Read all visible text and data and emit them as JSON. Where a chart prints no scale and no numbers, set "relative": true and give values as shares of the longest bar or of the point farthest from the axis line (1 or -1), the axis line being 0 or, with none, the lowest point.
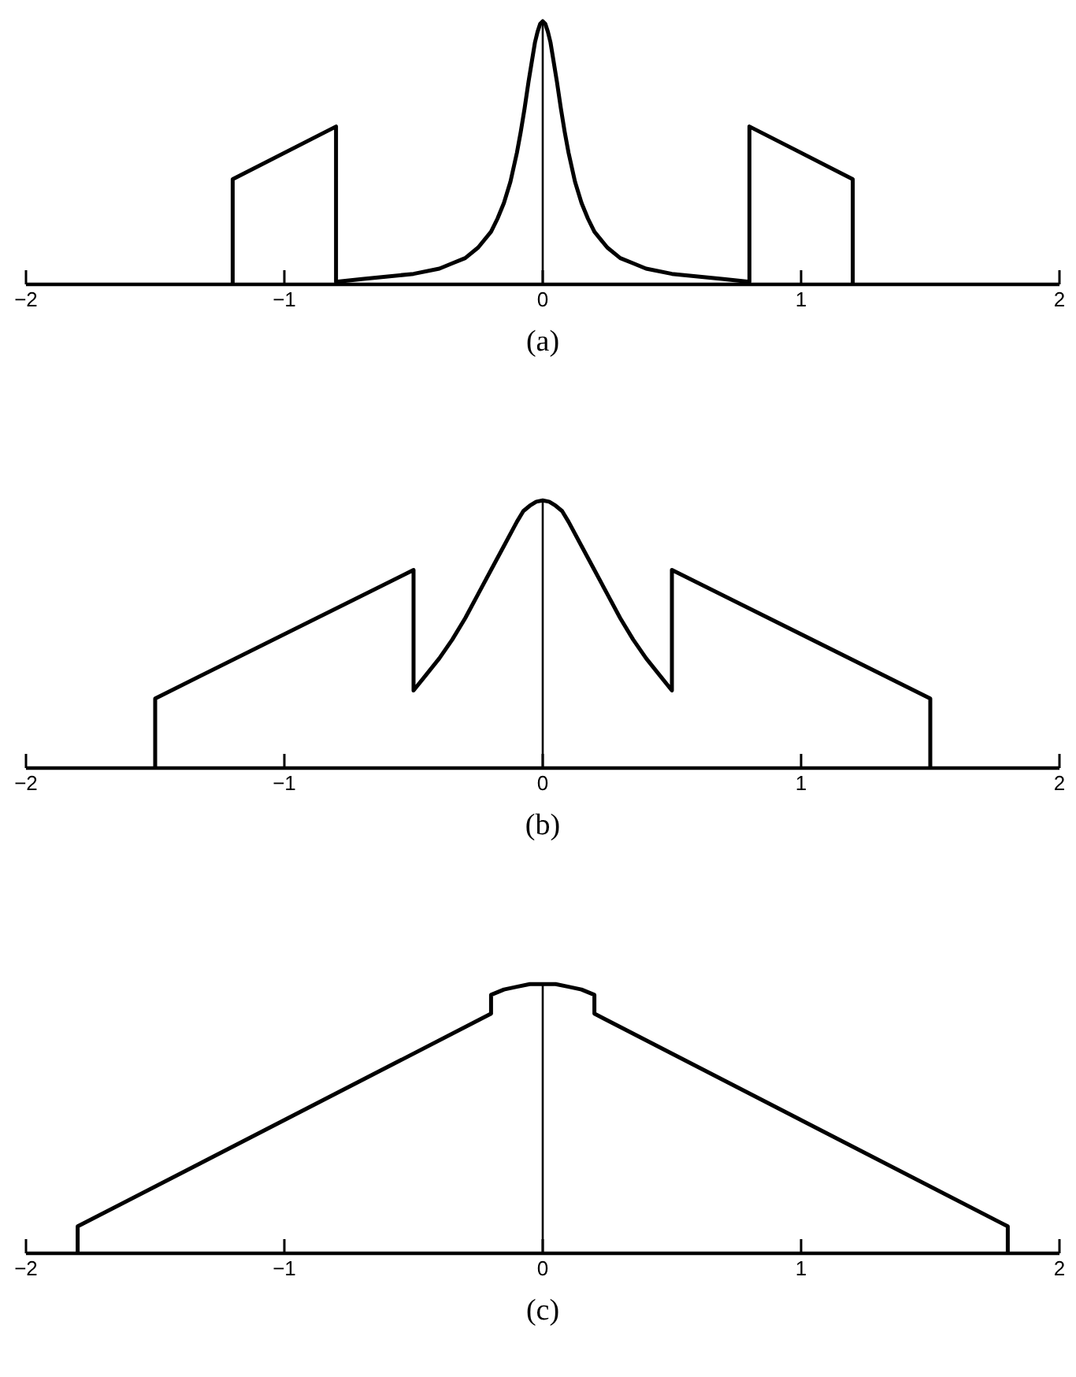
{
  "chart_data": [
    {
      "type": "line",
      "title": "(a)",
      "relative": true,
      "tick_labels": "x",
      "line_style": "solid",
      "color": "#000000",
      "xlim": [
        -2,
        2
      ],
      "xticks": [
        -2,
        -1,
        0,
        1,
        2
      ],
      "ref_lines": [
        {
          "axis": "x",
          "value": 0,
          "color": "#000000"
        }
      ],
      "x": [
        -1.2,
        -1.2,
        -0.8,
        -0.8,
        -0.7,
        -0.6,
        -0.5,
        -0.4,
        -0.35,
        -0.3,
        -0.25,
        -0.2,
        -0.175,
        -0.15,
        -0.125,
        -0.1,
        -0.085,
        -0.07,
        -0.055,
        -0.04,
        -0.03,
        -0.02,
        -0.01,
        0,
        0.01,
        0.02,
        0.03,
        0.04,
        0.055,
        0.07,
        0.085,
        0.1,
        0.125,
        0.15,
        0.175,
        0.2,
        0.25,
        0.3,
        0.35,
        0.4,
        0.5,
        0.6,
        0.7,
        0.8,
        0.8,
        1.2,
        1.2
      ],
      "values": [
        0,
        0.4,
        0.6,
        0.01,
        0.02,
        0.03,
        0.04,
        0.06,
        0.08,
        0.1,
        0.14,
        0.2,
        0.25,
        0.31,
        0.39,
        0.5,
        0.58,
        0.67,
        0.77,
        0.86,
        0.92,
        0.96,
        0.99,
        1,
        0.99,
        0.96,
        0.92,
        0.86,
        0.77,
        0.67,
        0.58,
        0.5,
        0.39,
        0.31,
        0.25,
        0.2,
        0.14,
        0.1,
        0.08,
        0.06,
        0.04,
        0.03,
        0.02,
        0.01,
        0.6,
        0.4,
        0
      ]
    },
    {
      "type": "line",
      "title": "(b)",
      "relative": true,
      "tick_labels": "x",
      "line_style": "solid",
      "color": "#000000",
      "xlim": [
        -2,
        2
      ],
      "xticks": [
        -2,
        -1,
        0,
        1,
        2
      ],
      "ref_lines": [
        {
          "axis": "x",
          "value": 0,
          "color": "#000000"
        }
      ],
      "x": [
        -1.5,
        -1.5,
        -0.5,
        -0.5,
        -0.45,
        -0.4,
        -0.35,
        -0.3,
        -0.25,
        -0.2,
        -0.15,
        -0.1,
        -0.075,
        -0.05,
        -0.025,
        0,
        0.025,
        0.05,
        0.075,
        0.1,
        0.15,
        0.2,
        0.25,
        0.3,
        0.35,
        0.4,
        0.45,
        0.5,
        0.5,
        1.5,
        1.5
      ],
      "values": [
        0,
        0.26,
        0.74,
        0.29,
        0.35,
        0.41,
        0.48,
        0.56,
        0.65,
        0.74,
        0.83,
        0.92,
        0.96,
        0.98,
        0.995,
        1,
        0.995,
        0.98,
        0.96,
        0.92,
        0.83,
        0.74,
        0.65,
        0.56,
        0.48,
        0.41,
        0.35,
        0.29,
        0.74,
        0.26,
        0
      ]
    },
    {
      "type": "line",
      "title": "(c)",
      "relative": true,
      "tick_labels": "x",
      "line_style": "solid",
      "color": "#000000",
      "xlim": [
        -2,
        2
      ],
      "xticks": [
        -2,
        -1,
        0,
        1,
        2
      ],
      "ref_lines": [
        {
          "axis": "x",
          "value": 0,
          "color": "#000000"
        }
      ],
      "x": [
        -1.8,
        -1.8,
        -0.2,
        -0.2,
        -0.15,
        -0.1,
        -0.05,
        0,
        0.05,
        0.1,
        0.15,
        0.2,
        0.2,
        1.8,
        1.8
      ],
      "values": [
        0,
        0.1,
        0.89,
        0.96,
        0.98,
        0.99,
        1,
        1,
        1,
        0.99,
        0.98,
        0.96,
        0.89,
        0.1,
        0
      ]
    }
  ]
}
